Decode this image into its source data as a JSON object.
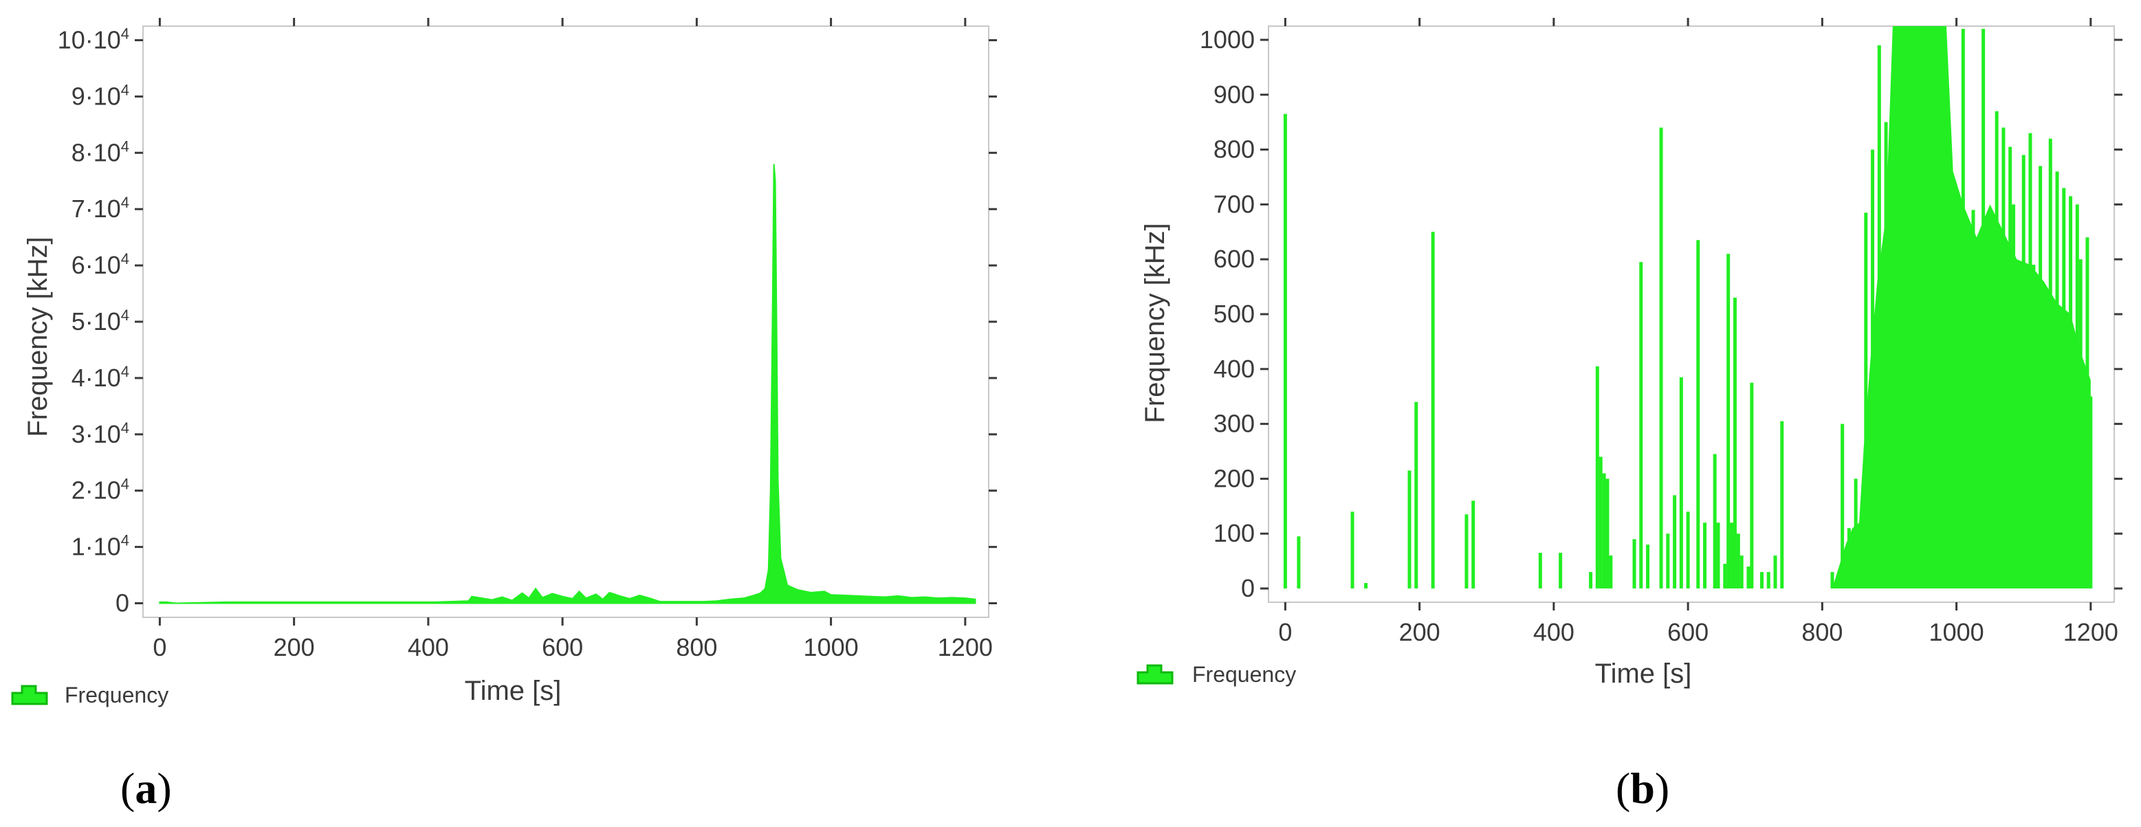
{
  "colors": {
    "series": "#22ee22",
    "series_edge": "#0fb80f",
    "axis": "#3a3a3a",
    "frame": "#c8c8c8"
  },
  "chart_data": [
    {
      "type": "area",
      "panel_label": "a",
      "xlabel": "Time [s]",
      "ylabel": "Frequency [kHz]",
      "xlim": [
        -25,
        1235
      ],
      "ylim": [
        -2500,
        102500
      ],
      "x_ticks": [
        0,
        200,
        400,
        600,
        800,
        1000,
        1200
      ],
      "y_ticks": [
        0,
        10000,
        20000,
        30000,
        40000,
        50000,
        60000,
        70000,
        80000,
        90000,
        100000
      ],
      "y_tick_bases": [
        "0",
        "1·10",
        "2·10",
        "3·10",
        "4·10",
        "5·10",
        "6·10",
        "7·10",
        "8·10",
        "9·10",
        "10·10"
      ],
      "y_tick_exps": [
        "",
        "4",
        "4",
        "4",
        "4",
        "4",
        "4",
        "4",
        "4",
        "4",
        "4"
      ],
      "legend": {
        "label": "Frequency",
        "icon": "histogram-icon",
        "placement": "bottom-left"
      },
      "grid": false,
      "series": [
        {
          "name": "Frequency",
          "points": [
            [
              0,
              200
            ],
            [
              10,
              200
            ],
            [
              25,
              0
            ],
            [
              100,
              200
            ],
            [
              125,
              200
            ],
            [
              190,
              200
            ],
            [
              200,
              200
            ],
            [
              225,
              200
            ],
            [
              275,
              200
            ],
            [
              285,
              200
            ],
            [
              380,
              200
            ],
            [
              410,
              200
            ],
            [
              460,
              400
            ],
            [
              465,
              1200
            ],
            [
              480,
              900
            ],
            [
              495,
              600
            ],
            [
              510,
              1100
            ],
            [
              525,
              500
            ],
            [
              540,
              1800
            ],
            [
              550,
              900
            ],
            [
              560,
              2600
            ],
            [
              570,
              1000
            ],
            [
              585,
              1700
            ],
            [
              600,
              1200
            ],
            [
              615,
              800
            ],
            [
              625,
              2100
            ],
            [
              635,
              900
            ],
            [
              650,
              1600
            ],
            [
              660,
              700
            ],
            [
              670,
              1900
            ],
            [
              685,
              1300
            ],
            [
              700,
              800
            ],
            [
              715,
              1400
            ],
            [
              730,
              900
            ],
            [
              745,
              300
            ],
            [
              810,
              300
            ],
            [
              830,
              400
            ],
            [
              850,
              700
            ],
            [
              870,
              900
            ],
            [
              885,
              1400
            ],
            [
              895,
              1800
            ],
            [
              902,
              2600
            ],
            [
              907,
              6000
            ],
            [
              910,
              20000
            ],
            [
              913,
              52000
            ],
            [
              915,
              78000
            ],
            [
              917,
              75000
            ],
            [
              919,
              50000
            ],
            [
              921,
              22000
            ],
            [
              925,
              8000
            ],
            [
              935,
              3200
            ],
            [
              950,
              2400
            ],
            [
              970,
              1900
            ],
            [
              990,
              2100
            ],
            [
              1000,
              1500
            ],
            [
              1020,
              1400
            ],
            [
              1040,
              1300
            ],
            [
              1060,
              1200
            ],
            [
              1080,
              1100
            ],
            [
              1100,
              1300
            ],
            [
              1120,
              1000
            ],
            [
              1140,
              1100
            ],
            [
              1160,
              900
            ],
            [
              1180,
              1000
            ],
            [
              1200,
              900
            ],
            [
              1215,
              700
            ]
          ]
        }
      ]
    },
    {
      "type": "bar",
      "panel_label": "b",
      "xlabel": "Time [s]",
      "ylabel": "Frequency [kHz]",
      "xlim": [
        -25,
        1235
      ],
      "ylim": [
        -25,
        1025
      ],
      "x_ticks": [
        0,
        200,
        400,
        600,
        800,
        1000,
        1200
      ],
      "y_ticks": [
        0,
        100,
        200,
        300,
        400,
        500,
        600,
        700,
        800,
        900,
        1000
      ],
      "legend": {
        "label": "Frequency",
        "icon": "histogram-icon",
        "placement": "bottom-left"
      },
      "grid": false,
      "series": [
        {
          "name": "Frequency",
          "spikes": [
            [
              0,
              865
            ],
            [
              20,
              95
            ],
            [
              100,
              140
            ],
            [
              120,
              10
            ],
            [
              185,
              215
            ],
            [
              195,
              340
            ],
            [
              220,
              650
            ],
            [
              270,
              135
            ],
            [
              280,
              160
            ],
            [
              380,
              65
            ],
            [
              410,
              65
            ],
            [
              455,
              30
            ],
            [
              465,
              405
            ],
            [
              470,
              240
            ],
            [
              475,
              210
            ],
            [
              480,
              200
            ],
            [
              485,
              60
            ],
            [
              520,
              90
            ],
            [
              530,
              595
            ],
            [
              540,
              80
            ],
            [
              560,
              840
            ],
            [
              570,
              100
            ],
            [
              580,
              170
            ],
            [
              590,
              385
            ],
            [
              600,
              140
            ],
            [
              615,
              635
            ],
            [
              625,
              120
            ],
            [
              640,
              245
            ],
            [
              645,
              120
            ],
            [
              655,
              45
            ],
            [
              660,
              610
            ],
            [
              665,
              120
            ],
            [
              670,
              530
            ],
            [
              675,
              100
            ],
            [
              680,
              60
            ],
            [
              690,
              40
            ],
            [
              695,
              375
            ],
            [
              710,
              30
            ],
            [
              720,
              30
            ],
            [
              730,
              60
            ],
            [
              740,
              305
            ],
            [
              815,
              30
            ],
            [
              830,
              300
            ],
            [
              840,
              110
            ],
            [
              850,
              200
            ],
            [
              855,
              110
            ],
            [
              865,
              685
            ],
            [
              875,
              800
            ],
            [
              885,
              990
            ],
            [
              895,
              850
            ],
            [
              1010,
              1020
            ],
            [
              1025,
              690
            ],
            [
              1040,
              1020
            ],
            [
              1060,
              870
            ],
            [
              1070,
              840
            ],
            [
              1080,
              805
            ],
            [
              1085,
              700
            ],
            [
              1100,
              790
            ],
            [
              1110,
              830
            ],
            [
              1115,
              590
            ],
            [
              1125,
              770
            ],
            [
              1140,
              820
            ],
            [
              1150,
              760
            ],
            [
              1160,
              730
            ],
            [
              1170,
              715
            ],
            [
              1180,
              700
            ],
            [
              1185,
              600
            ],
            [
              1195,
              640
            ],
            [
              1200,
              350
            ]
          ],
          "envelope": [
            [
              815,
              0
            ],
            [
              825,
              40
            ],
            [
              835,
              80
            ],
            [
              845,
              110
            ],
            [
              855,
              120
            ],
            [
              862,
              260
            ],
            [
              872,
              420
            ],
            [
              882,
              560
            ],
            [
              895,
              680
            ],
            [
              905,
              1025
            ],
            [
              985,
              1025
            ],
            [
              995,
              760
            ],
            [
              1010,
              700
            ],
            [
              1030,
              640
            ],
            [
              1050,
              700
            ],
            [
              1070,
              650
            ],
            [
              1090,
              600
            ],
            [
              1110,
              590
            ],
            [
              1130,
              560
            ],
            [
              1150,
              520
            ],
            [
              1170,
              500
            ],
            [
              1185,
              430
            ],
            [
              1200,
              380
            ],
            [
              1200,
              0
            ]
          ]
        }
      ]
    }
  ]
}
